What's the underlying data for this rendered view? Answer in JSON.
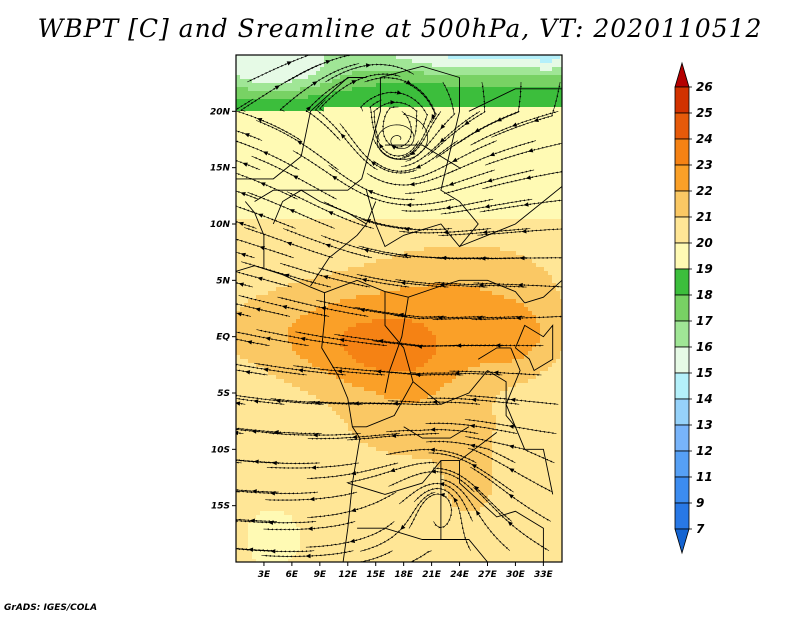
{
  "title": "WBPT [C] and Sreamline at 500hPa, VT: 2020110512",
  "credit": "GrADS: IGES/COLA",
  "chart_data": {
    "type": "heatmap",
    "title": "WBPT [C] and Sreamline at 500hPa, VT: 2020110512",
    "lon_range": [
      0,
      35
    ],
    "lat_range": [
      -20,
      25
    ],
    "x_ticks": [
      {
        "value": 3,
        "label": "3E"
      },
      {
        "value": 6,
        "label": "6E"
      },
      {
        "value": 9,
        "label": "9E"
      },
      {
        "value": 12,
        "label": "12E"
      },
      {
        "value": 15,
        "label": "15E"
      },
      {
        "value": 18,
        "label": "18E"
      },
      {
        "value": 21,
        "label": "21E"
      },
      {
        "value": 24,
        "label": "24E"
      },
      {
        "value": 27,
        "label": "27E"
      },
      {
        "value": 30,
        "label": "30E"
      },
      {
        "value": 33,
        "label": "33E"
      }
    ],
    "y_ticks": [
      {
        "value": 20,
        "label": "20N"
      },
      {
        "value": 15,
        "label": "15N"
      },
      {
        "value": 10,
        "label": "10N"
      },
      {
        "value": 5,
        "label": "5N"
      },
      {
        "value": 0,
        "label": "EQ"
      },
      {
        "value": -5,
        "label": "5S"
      },
      {
        "value": -10,
        "label": "10S"
      },
      {
        "value": -15,
        "label": "15S"
      }
    ],
    "colorbar": [
      {
        "label": "7",
        "color": "#1e64dc"
      },
      {
        "label": "9",
        "color": "#2878e6"
      },
      {
        "label": "11",
        "color": "#3c8cf0"
      },
      {
        "label": "12",
        "color": "#56a0f5"
      },
      {
        "label": "13",
        "color": "#78b4fa"
      },
      {
        "label": "14",
        "color": "#96d2fa"
      },
      {
        "label": "15",
        "color": "#b4f0fa"
      },
      {
        "label": "16",
        "color": "#e6fae6"
      },
      {
        "label": "17",
        "color": "#a0e696"
      },
      {
        "label": "18",
        "color": "#78d264"
      },
      {
        "label": "19",
        "color": "#3cbe3c"
      },
      {
        "label": "20",
        "color": "#fffab4"
      },
      {
        "label": "21",
        "color": "#ffe696"
      },
      {
        "label": "22",
        "color": "#fac864"
      },
      {
        "label": "23",
        "color": "#faa028"
      },
      {
        "label": "24",
        "color": "#f58214"
      },
      {
        "label": "25",
        "color": "#e65a0a"
      },
      {
        "label": "26",
        "color": "#d23200"
      }
    ],
    "colorbar_under_color": "#1464d2",
    "colorbar_over_color": "#b40000",
    "streamline_vortex": {
      "lon": 17.5,
      "lat": 17.5
    }
  }
}
